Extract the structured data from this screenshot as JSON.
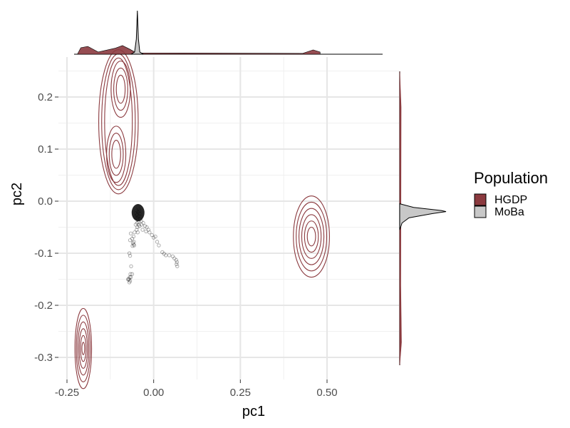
{
  "chart_data": {
    "type": "scatter",
    "xlabel": "pc1",
    "ylabel": "pc2",
    "xlim": [
      -0.25,
      0.52
    ],
    "ylim": [
      -0.335,
      0.265
    ],
    "x_ticks": [
      -0.25,
      0.0,
      0.25,
      0.5
    ],
    "x_tick_labels": [
      "-0.25",
      "0.00",
      "0.25",
      "0.50"
    ],
    "y_ticks": [
      0.2,
      0.1,
      0.0,
      -0.1,
      -0.2,
      -0.3
    ],
    "y_tick_labels": [
      "0.2",
      "0.1",
      "0.0",
      "-0.1",
      "-0.2",
      "-0.3"
    ],
    "grid": true,
    "legend": {
      "title": "Population",
      "position": "right",
      "entries": [
        {
          "name": "HGDP",
          "color": "#8b3a3f"
        },
        {
          "name": "MoBa",
          "color": "#c8c8c8"
        }
      ]
    },
    "series": [
      {
        "name": "MoBa",
        "kind": "points",
        "color": "#000000",
        "points": [
          [
            -0.046,
            -0.02
          ],
          [
            -0.044,
            -0.022
          ],
          [
            -0.048,
            -0.025
          ],
          [
            -0.042,
            -0.028
          ],
          [
            -0.05,
            -0.018
          ],
          [
            -0.045,
            -0.03
          ],
          [
            -0.04,
            -0.024
          ],
          [
            -0.047,
            -0.033
          ],
          [
            -0.043,
            -0.015
          ],
          [
            -0.049,
            -0.027
          ],
          [
            -0.041,
            -0.019
          ],
          [
            -0.046,
            -0.036
          ],
          [
            -0.044,
            -0.04
          ],
          [
            -0.038,
            -0.03
          ],
          [
            -0.052,
            -0.023
          ],
          [
            -0.045,
            -0.012
          ],
          [
            -0.039,
            -0.035
          ],
          [
            -0.048,
            -0.042
          ],
          [
            -0.043,
            -0.045
          ],
          [
            -0.05,
            -0.032
          ],
          [
            -0.036,
            -0.038
          ],
          [
            -0.054,
            -0.03
          ],
          [
            -0.047,
            -0.05
          ],
          [
            -0.041,
            -0.048
          ],
          [
            -0.035,
            -0.045
          ],
          [
            -0.049,
            -0.055
          ],
          [
            -0.052,
            -0.045
          ],
          [
            -0.046,
            -0.06
          ],
          [
            -0.03,
            -0.042
          ],
          [
            -0.025,
            -0.048
          ],
          [
            -0.02,
            -0.05
          ],
          [
            -0.015,
            -0.055
          ],
          [
            -0.012,
            -0.06
          ],
          [
            -0.022,
            -0.058
          ],
          [
            -0.032,
            -0.055
          ],
          [
            -0.055,
            -0.06
          ],
          [
            -0.058,
            -0.068
          ],
          [
            -0.06,
            -0.08
          ],
          [
            -0.058,
            -0.083
          ],
          [
            -0.056,
            -0.085
          ],
          [
            -0.061,
            -0.086
          ],
          [
            -0.057,
            -0.078
          ],
          [
            -0.062,
            -0.072
          ],
          [
            -0.066,
            -0.062
          ],
          [
            -0.068,
            -0.075
          ],
          [
            -0.005,
            -0.065
          ],
          [
            0.0,
            -0.07
          ],
          [
            0.005,
            -0.068
          ],
          [
            0.01,
            -0.078
          ],
          [
            0.015,
            -0.085
          ],
          [
            0.025,
            -0.098
          ],
          [
            0.03,
            -0.101
          ],
          [
            0.035,
            -0.104
          ],
          [
            0.045,
            -0.104
          ],
          [
            0.055,
            -0.106
          ],
          [
            0.06,
            -0.11
          ],
          [
            0.065,
            -0.113
          ],
          [
            0.067,
            -0.117
          ],
          [
            0.066,
            -0.121
          ],
          [
            0.068,
            -0.125
          ],
          [
            -0.07,
            -0.1
          ],
          [
            -0.068,
            -0.105
          ],
          [
            -0.065,
            -0.125
          ],
          [
            -0.067,
            -0.14
          ],
          [
            -0.069,
            -0.146
          ],
          [
            -0.071,
            -0.149
          ],
          [
            -0.068,
            -0.153
          ],
          [
            -0.072,
            -0.151
          ],
          [
            -0.066,
            -0.146
          ],
          [
            -0.07,
            -0.156
          ],
          [
            -0.074,
            -0.15
          ],
          [
            -0.062,
            -0.14
          ]
        ]
      },
      {
        "name": "HGDP",
        "kind": "contour",
        "color": "#8b3a3f",
        "clusters": [
          {
            "peaks": [
              {
                "cx": -0.095,
                "cy": 0.215
              },
              {
                "cx": -0.108,
                "cy": 0.09
              }
            ],
            "rx": [
              0.017,
              0.027,
              0.037,
              0.047,
              0.057,
              0.067
            ],
            "ry": [
              0.03,
              0.045,
              0.06,
              0.075,
              0.085,
              0.095
            ]
          },
          {
            "cx": 0.455,
            "cy": -0.068,
            "rx": [
              0.012,
              0.02,
              0.028,
              0.036,
              0.044,
              0.052
            ],
            "ry": [
              0.018,
              0.03,
              0.042,
              0.054,
              0.066,
              0.078
            ]
          },
          {
            "cx": -0.203,
            "cy": -0.283,
            "rx": [
              0.004,
              0.008,
              0.012,
              0.016,
              0.02,
              0.024
            ],
            "ry": [
              0.012,
              0.025,
              0.038,
              0.051,
              0.064,
              0.077
            ]
          }
        ]
      }
    ],
    "marginal_x": {
      "HGDP": [
        [
          -0.22,
          0.0
        ],
        [
          -0.21,
          0.15
        ],
        [
          -0.19,
          0.18
        ],
        [
          -0.16,
          0.05
        ],
        [
          -0.11,
          0.14
        ],
        [
          -0.09,
          0.2
        ],
        [
          -0.07,
          0.12
        ],
        [
          -0.05,
          0.03
        ],
        [
          0.43,
          0.02
        ],
        [
          0.46,
          0.1
        ],
        [
          0.48,
          0.05
        ]
      ],
      "MoBa": [
        [
          -0.065,
          0.0
        ],
        [
          -0.055,
          0.05
        ],
        [
          -0.05,
          0.35
        ],
        [
          -0.047,
          1.0
        ],
        [
          -0.044,
          0.35
        ],
        [
          -0.04,
          0.05
        ],
        [
          -0.03,
          0.0
        ]
      ]
    },
    "marginal_y": {
      "HGDP": [
        [
          -0.3,
          0.06
        ],
        [
          -0.28,
          0.08
        ],
        [
          -0.07,
          0.06
        ],
        [
          0.1,
          0.05
        ],
        [
          0.21,
          0.07
        ]
      ],
      "MoBa": [
        [
          -0.005,
          0.0
        ],
        [
          -0.012,
          0.3
        ],
        [
          -0.018,
          0.9
        ],
        [
          -0.02,
          1.0
        ],
        [
          -0.024,
          0.7
        ],
        [
          -0.032,
          0.2
        ],
        [
          -0.042,
          0.05
        ],
        [
          -0.055,
          0.0
        ]
      ]
    }
  }
}
